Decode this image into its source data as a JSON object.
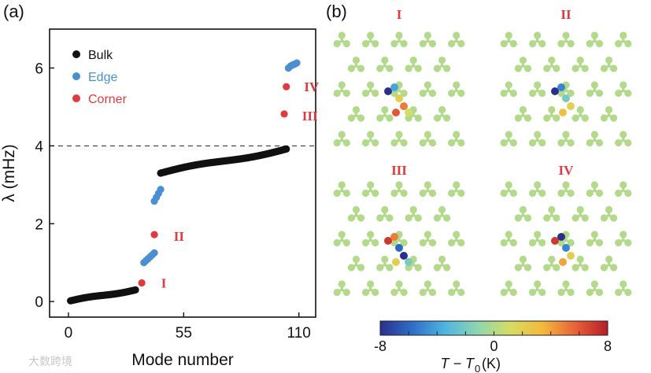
{
  "figure": {
    "panel_a_label": "(a)",
    "panel_b_label": "(b)",
    "watermark": "大数跨境"
  },
  "chart_data": {
    "type": "scatter",
    "xlabel": "Mode number",
    "ylabel": "λ (mHz)",
    "xlim": [
      -9,
      118
    ],
    "ylim": [
      -0.4,
      7.0
    ],
    "xticks": [
      0,
      55,
      110
    ],
    "yticks": [
      0,
      2,
      4,
      6
    ],
    "xtick_labels": [
      "0",
      "55",
      "110"
    ],
    "ytick_labels": [
      "0",
      "2",
      "4",
      "6"
    ],
    "reference_line": {
      "y": 4.0,
      "style": "dashed"
    },
    "legend": {
      "placement": "top-left",
      "entries": [
        "Bulk",
        "Edge",
        "Corner"
      ]
    },
    "colors": {
      "Bulk": "#111111",
      "Edge": "#4a8fd0",
      "Corner": "#e03a3e",
      "annotation": "#e03a3e"
    },
    "series": [
      {
        "name": "Bulk",
        "segments": [
          {
            "x_start": 1,
            "x_end": 32,
            "y_start": 0.02,
            "y_end": 0.3
          },
          {
            "x_start": 44,
            "x_end": 104,
            "y_start": 3.3,
            "y_end": 3.92
          }
        ]
      },
      {
        "name": "Edge",
        "x": [
          36,
          37,
          38,
          39,
          40,
          41,
          41,
          42,
          43,
          44,
          105,
          106,
          107,
          108,
          109
        ],
        "y": [
          1.0,
          1.05,
          1.1,
          1.15,
          1.2,
          1.25,
          2.58,
          2.68,
          2.78,
          2.88,
          6.0,
          6.05,
          6.08,
          6.1,
          6.13
        ]
      },
      {
        "name": "Corner",
        "x": [
          35,
          41,
          103,
          104
        ],
        "y": [
          0.48,
          1.72,
          4.82,
          5.52
        ]
      }
    ],
    "annotations": [
      {
        "text": "I",
        "x": 36,
        "y": 0.48
      },
      {
        "text": "II",
        "x": 42,
        "y": 1.72
      },
      {
        "text": "III",
        "x": 104,
        "y": 4.82
      },
      {
        "text": "IV",
        "x": 105,
        "y": 5.52
      }
    ]
  },
  "heatmaps": {
    "panels": [
      {
        "label": "I",
        "hotspot": [
          {
            "name": "dark-blue-node",
            "value": -8
          },
          {
            "name": "blue-node",
            "value": -4
          },
          {
            "name": "yellow-node",
            "value": 2
          },
          {
            "name": "orange-node",
            "value": 5
          },
          {
            "name": "red-orange-node",
            "value": 6
          },
          {
            "name": "olive-node",
            "value": 1
          }
        ]
      },
      {
        "label": "II",
        "hotspot": [
          {
            "name": "dark-blue-node",
            "value": -8
          },
          {
            "name": "blue-node",
            "value": -5
          },
          {
            "name": "cyan-node",
            "value": -2
          },
          {
            "name": "yellow-node",
            "value": 2
          },
          {
            "name": "yellow-node-2",
            "value": 3
          }
        ]
      },
      {
        "label": "III",
        "hotspot": [
          {
            "name": "red-node",
            "value": 7
          },
          {
            "name": "orange-node",
            "value": 5
          },
          {
            "name": "blue-node",
            "value": -6
          },
          {
            "name": "dark-blue-node",
            "value": -8
          },
          {
            "name": "yellow-node",
            "value": 2
          },
          {
            "name": "cyan-node",
            "value": -2
          }
        ]
      },
      {
        "label": "IV",
        "hotspot": [
          {
            "name": "red-node",
            "value": 7
          },
          {
            "name": "dark-blue-node",
            "value": -8
          },
          {
            "name": "blue-node",
            "value": -5
          },
          {
            "name": "yellow-node",
            "value": 2
          },
          {
            "name": "orange-node",
            "value": 4
          }
        ]
      }
    ],
    "background_value": 0,
    "colorbar": {
      "min": -8,
      "max": 8,
      "tick_labels": [
        "-8",
        "0",
        "8"
      ],
      "label_main": "T − T",
      "label_sub": "0",
      "label_unit": " (K)",
      "colors": [
        "#2b2f8c",
        "#2f6fc8",
        "#4fb5e0",
        "#8fd6b0",
        "#d6dc63",
        "#f4b83c",
        "#e8613a",
        "#b51c27"
      ]
    }
  }
}
